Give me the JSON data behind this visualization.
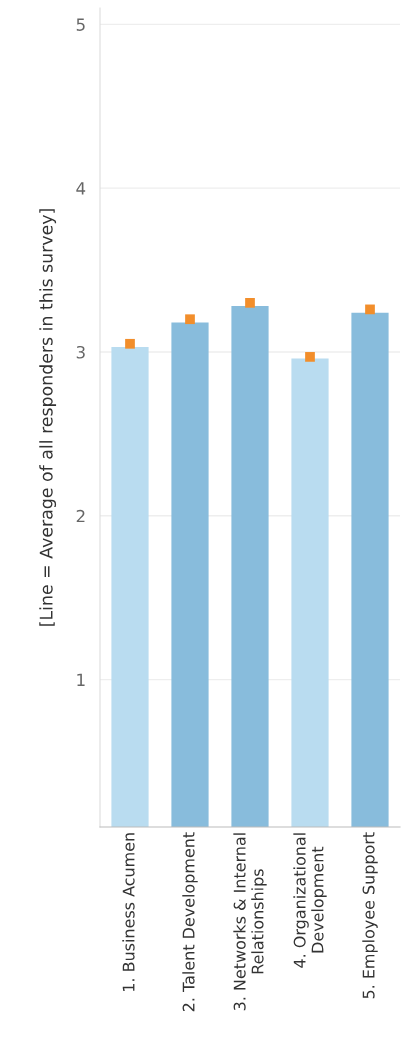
{
  "chart_data": {
    "type": "bar",
    "ylabel": "[Line = Average of all responders in this survey]",
    "categories": [
      "1. Business Acumen",
      "2. Talent Development",
      "3. Networks & Internal\nRelationships",
      "4. Organizational\nDevelopment",
      "5. Employee Support"
    ],
    "series": [
      {
        "values": [
          3.03,
          3.18,
          3.28,
          2.96,
          3.24
        ],
        "colors": [
          "#b9dcf0",
          "#88bcdc",
          "#88bcdc",
          "#b9dcf0",
          "#88bcdc"
        ]
      },
      {
        "type": "scatter",
        "marker": "square",
        "color": "#f28e2b",
        "values": [
          3.05,
          3.2,
          3.3,
          2.97,
          3.26
        ]
      }
    ],
    "ylim": [
      0.1,
      5.1
    ],
    "yticks": [
      1,
      2,
      3,
      4,
      5
    ],
    "grid": "y",
    "legend": false
  }
}
